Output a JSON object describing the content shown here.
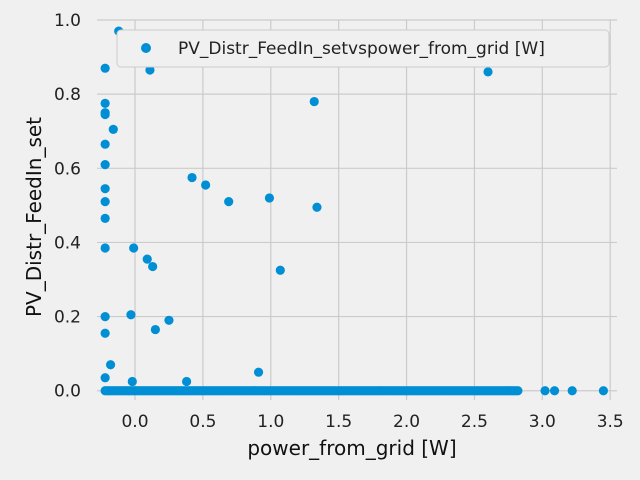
{
  "chart_data": {
    "type": "scatter",
    "title": "",
    "xlabel": "power_from_grid [W]",
    "ylabel": "PV_Distr_FeedIn_set",
    "xlim": [
      -0.28,
      3.55
    ],
    "ylim": [
      -0.025,
      1.0
    ],
    "xticks": [
      "0.0",
      "0.5",
      "1.0",
      "1.5",
      "2.0",
      "2.5",
      "3.0",
      "3.5"
    ],
    "xtick_values": [
      0.0,
      0.5,
      1.0,
      1.5,
      2.0,
      2.5,
      3.0,
      3.5
    ],
    "yticks": [
      "0.0",
      "0.2",
      "0.4",
      "0.6",
      "0.8",
      "1.0"
    ],
    "ytick_values": [
      0.0,
      0.2,
      0.4,
      0.6,
      0.8,
      1.0
    ],
    "grid": true,
    "legend_position": "top-right",
    "series": [
      {
        "name": "PV_Distr_FeedIn_setvspower_from_grid [W]",
        "color": "#008fd5",
        "points": [
          [
            -0.22,
            0.87
          ],
          [
            -0.22,
            0.775
          ],
          [
            -0.22,
            0.75
          ],
          [
            -0.22,
            0.745
          ],
          [
            -0.22,
            0.665
          ],
          [
            -0.22,
            0.61
          ],
          [
            -0.22,
            0.545
          ],
          [
            -0.22,
            0.51
          ],
          [
            -0.22,
            0.465
          ],
          [
            -0.22,
            0.385
          ],
          [
            -0.22,
            0.2
          ],
          [
            -0.22,
            0.155
          ],
          [
            -0.22,
            0.035
          ],
          [
            -0.18,
            0.07
          ],
          [
            -0.16,
            0.705
          ],
          [
            -0.12,
            0.97
          ],
          [
            -0.03,
            0.205
          ],
          [
            -0.02,
            0.025
          ],
          [
            -0.01,
            0.385
          ],
          [
            0.09,
            0.355
          ],
          [
            0.11,
            0.865
          ],
          [
            0.13,
            0.335
          ],
          [
            0.15,
            0.165
          ],
          [
            0.25,
            0.19
          ],
          [
            0.38,
            0.025
          ],
          [
            0.42,
            0.575
          ],
          [
            0.52,
            0.555
          ],
          [
            0.69,
            0.51
          ],
          [
            0.91,
            0.05
          ],
          [
            0.99,
            0.52
          ],
          [
            1.07,
            0.325
          ],
          [
            1.32,
            0.78
          ],
          [
            1.34,
            0.495
          ],
          [
            2.6,
            0.86
          ],
          [
            3.02,
            0.0
          ],
          [
            3.09,
            0.0
          ],
          [
            3.22,
            0.0
          ],
          [
            3.45,
            0.0
          ]
        ],
        "dense_run_at_zero": {
          "x_from": -0.22,
          "x_to": 2.82,
          "y": 0.0
        }
      }
    ]
  }
}
